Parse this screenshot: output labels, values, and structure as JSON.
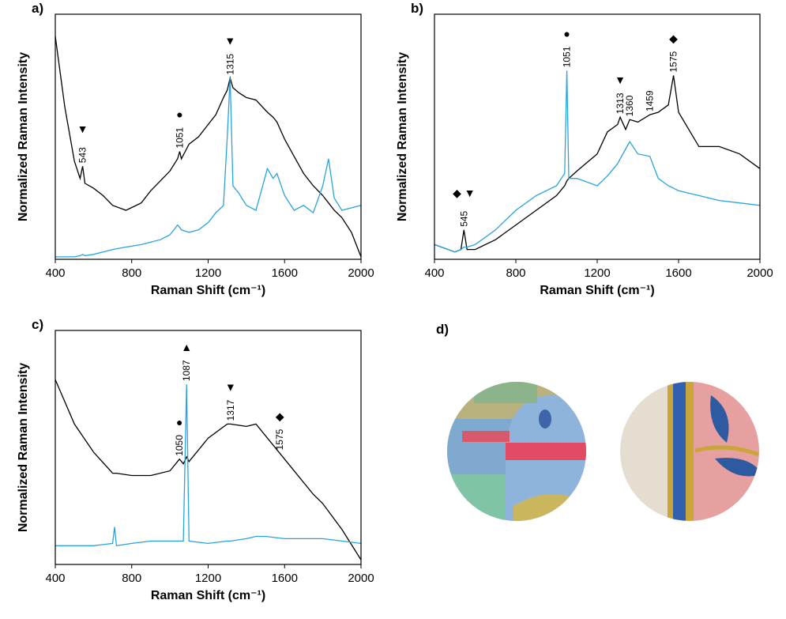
{
  "chart_data": [
    {
      "type": "line",
      "label": "a)",
      "xlabel": "Raman Shift (cm⁻¹)",
      "ylabel": "Normalized Raman Intensity",
      "xlim": [
        400,
        2000
      ],
      "xticks": [
        400,
        800,
        1200,
        1600,
        2000
      ],
      "ylim": [
        0,
        1
      ],
      "x": [
        400,
        450,
        500,
        530,
        543,
        555,
        600,
        650,
        700,
        770,
        850,
        900,
        950,
        1000,
        1040,
        1051,
        1060,
        1100,
        1150,
        1200,
        1240,
        1280,
        1300,
        1315,
        1330,
        1360,
        1400,
        1450,
        1510,
        1540,
        1560,
        1600,
        1650,
        1700,
        1750,
        1800,
        1830,
        1860,
        1900,
        1950,
        2000
      ],
      "series": [
        {
          "color": "#000000",
          "values": [
            0.91,
            0.62,
            0.4,
            0.33,
            0.38,
            0.31,
            0.29,
            0.26,
            0.22,
            0.2,
            0.23,
            0.28,
            0.32,
            0.36,
            0.41,
            0.44,
            0.41,
            0.47,
            0.5,
            0.55,
            0.59,
            0.66,
            0.69,
            0.74,
            0.7,
            0.68,
            0.66,
            0.65,
            0.6,
            0.58,
            0.56,
            0.49,
            0.42,
            0.35,
            0.3,
            0.26,
            0.23,
            0.2,
            0.17,
            0.11,
            0.01
          ]
        },
        {
          "color": "#29a3dc",
          "values": [
            0.01,
            0.01,
            0.01,
            0.015,
            0.02,
            0.015,
            0.02,
            0.03,
            0.04,
            0.05,
            0.06,
            0.07,
            0.08,
            0.1,
            0.14,
            0.13,
            0.12,
            0.11,
            0.12,
            0.15,
            0.19,
            0.22,
            0.5,
            0.74,
            0.3,
            0.27,
            0.22,
            0.2,
            0.37,
            0.33,
            0.35,
            0.26,
            0.2,
            0.22,
            0.19,
            0.3,
            0.41,
            0.25,
            0.2,
            0.21,
            0.22
          ]
        }
      ],
      "annotations": [
        {
          "label": 543,
          "symbol": "▼"
        },
        {
          "label": 1051,
          "symbol": "●"
        },
        {
          "label": 1315,
          "symbol": "▼"
        }
      ]
    },
    {
      "type": "line",
      "label": "b)",
      "xlabel": "Raman Shift (cm⁻¹)",
      "ylabel": "Normalized Raman Intensity",
      "xlim": [
        400,
        2000
      ],
      "xticks": [
        400,
        800,
        1200,
        1600,
        2000
      ],
      "ylim": [
        0,
        1
      ],
      "x": [
        400,
        500,
        530,
        545,
        560,
        600,
        700,
        800,
        900,
        1000,
        1040,
        1051,
        1060,
        1100,
        1200,
        1250,
        1300,
        1313,
        1340,
        1360,
        1400,
        1459,
        1500,
        1550,
        1575,
        1600,
        1700,
        1800,
        1900,
        2000
      ],
      "series": [
        {
          "color": "#000000",
          "values": [
            0.06,
            0.03,
            0.04,
            0.12,
            0.04,
            0.04,
            0.08,
            0.14,
            0.2,
            0.26,
            0.3,
            0.32,
            0.33,
            0.36,
            0.43,
            0.52,
            0.55,
            0.58,
            0.53,
            0.57,
            0.56,
            0.59,
            0.6,
            0.63,
            0.75,
            0.6,
            0.46,
            0.46,
            0.43,
            0.37
          ]
        },
        {
          "color": "#29a3dc",
          "values": [
            0.06,
            0.03,
            0.04,
            0.05,
            0.05,
            0.06,
            0.12,
            0.2,
            0.26,
            0.3,
            0.35,
            0.77,
            0.33,
            0.33,
            0.3,
            0.34,
            0.39,
            0.41,
            0.45,
            0.48,
            0.43,
            0.42,
            0.33,
            0.3,
            0.29,
            0.28,
            0.26,
            0.24,
            0.23,
            0.22
          ]
        }
      ],
      "annotations": [
        {
          "label": 545,
          "symbol": "◆ ▼"
        },
        {
          "label": 1051,
          "symbol": "●"
        },
        {
          "label": 1313,
          "symbol": "▼"
        },
        {
          "label": 1360
        },
        {
          "label": 1459
        },
        {
          "label": 1575,
          "symbol": "◆"
        }
      ]
    },
    {
      "type": "line",
      "label": "c)",
      "xlabel": "Raman Shift (cm⁻¹)",
      "ylabel": "Normalized Raman Intensity",
      "xlim": [
        400,
        2000
      ],
      "xticks": [
        400,
        800,
        1200,
        1600,
        2000
      ],
      "ylim": [
        0,
        1
      ],
      "x": [
        400,
        500,
        600,
        700,
        710,
        720,
        800,
        900,
        1000,
        1050,
        1070,
        1087,
        1100,
        1200,
        1300,
        1317,
        1400,
        1450,
        1500,
        1600,
        1700,
        1750,
        1800,
        1900,
        2000
      ],
      "series": [
        {
          "color": "#000000",
          "values": [
            0.79,
            0.6,
            0.48,
            0.39,
            0.39,
            0.39,
            0.38,
            0.38,
            0.4,
            0.45,
            0.43,
            0.46,
            0.44,
            0.54,
            0.6,
            0.6,
            0.59,
            0.6,
            0.55,
            0.45,
            0.35,
            0.3,
            0.26,
            0.15,
            0.02
          ]
        },
        {
          "color": "#29a3dc",
          "values": [
            0.08,
            0.08,
            0.08,
            0.09,
            0.16,
            0.08,
            0.09,
            0.1,
            0.1,
            0.1,
            0.1,
            0.77,
            0.1,
            0.09,
            0.1,
            0.1,
            0.11,
            0.12,
            0.12,
            0.11,
            0.11,
            0.11,
            0.11,
            0.1,
            0.09
          ]
        }
      ],
      "annotations": [
        {
          "label": 1050,
          "symbol": "●"
        },
        {
          "label": 1087,
          "symbol": "▲"
        },
        {
          "label": 1317,
          "symbol": "▼"
        },
        {
          "label": 1575,
          "symbol": "◆"
        }
      ]
    }
  ],
  "panel_d": {
    "label": "d)"
  }
}
